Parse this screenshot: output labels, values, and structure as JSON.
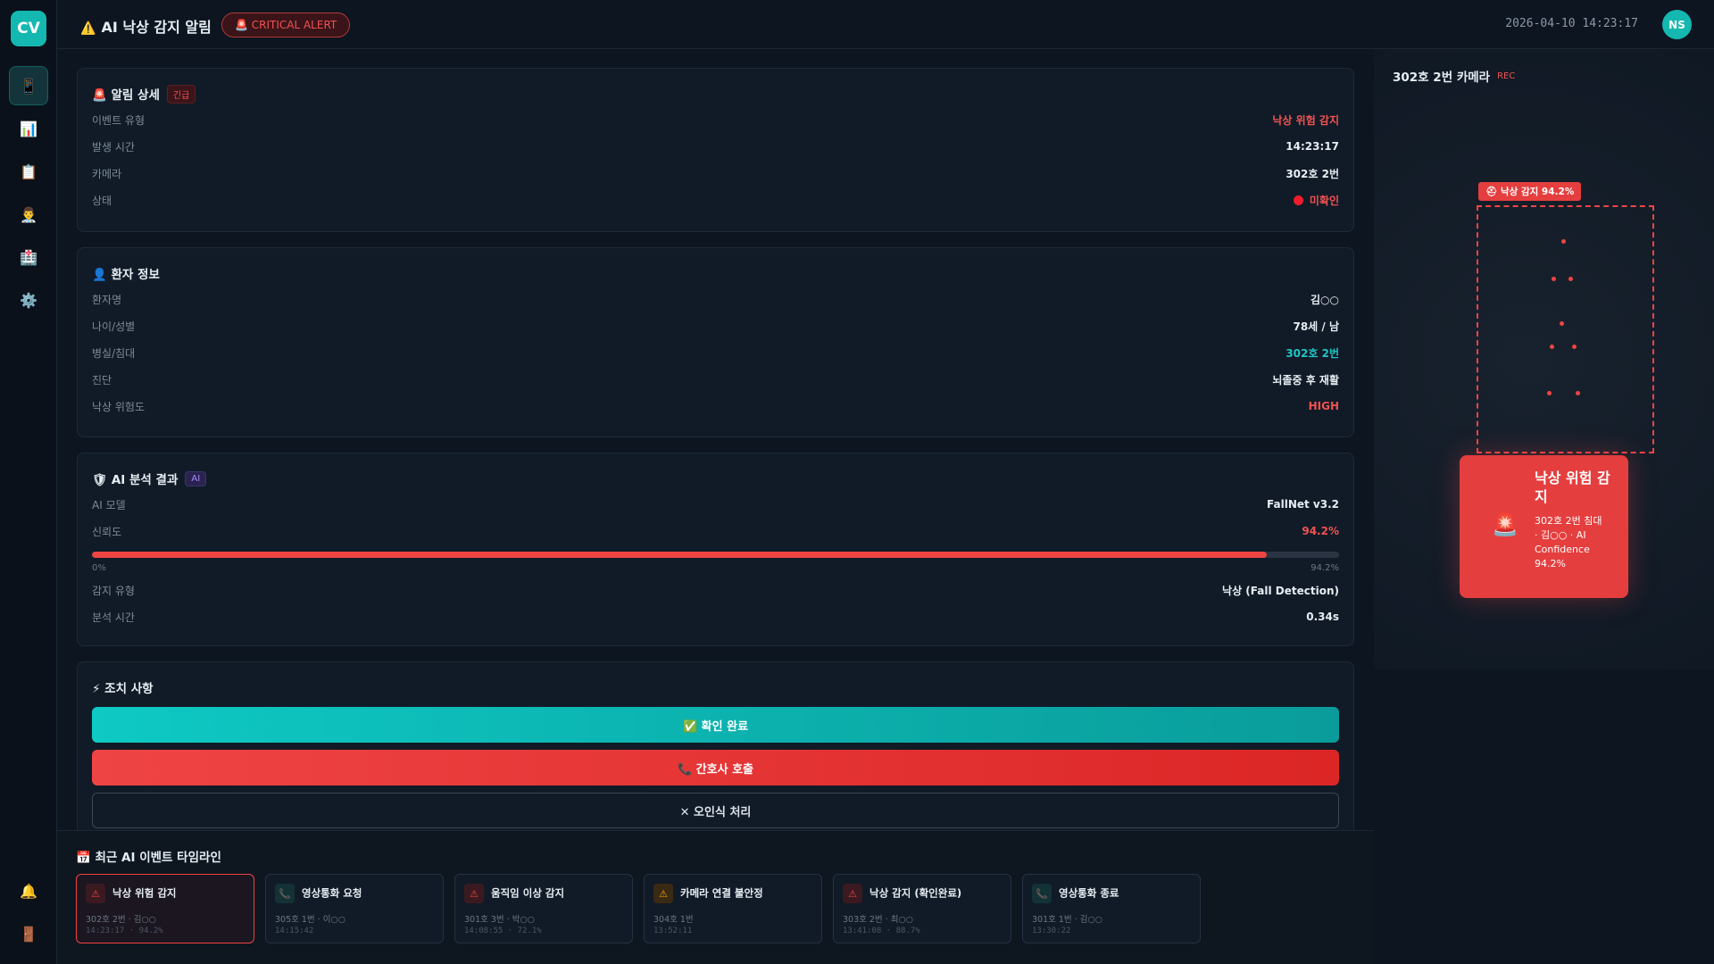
{
  "header": {
    "logo": "CV",
    "icon": "⚠️",
    "title": "AI 낙상 감지 알림",
    "badge": "🚨 CRITICAL ALERT",
    "datetime": "2026-04-10 14:23:17",
    "avatar": "NS"
  },
  "sidebar": {
    "icons": [
      "📱",
      "📊",
      "📋",
      "👨‍⚕️",
      "🏥",
      "⚙️"
    ],
    "bottom_icons": [
      "🔔",
      "🚪"
    ]
  },
  "alert": {
    "title": "🚨 알림 상세",
    "tag": "긴급",
    "rows": [
      [
        "이벤트 유형",
        "낙상 위험 감지"
      ],
      [
        "발생 시간",
        "14:23:17"
      ],
      [
        "카메라",
        "302호 2번"
      ],
      [
        "상태",
        "미확인"
      ]
    ]
  },
  "patient": {
    "title": "👤 환자 정보",
    "rows": [
      [
        "환자명",
        "김○○"
      ],
      [
        "나이/성별",
        "78세 / 남"
      ],
      [
        "병실/침대",
        "302호 2번"
      ],
      [
        "진단",
        "뇌졸중 후 재활"
      ],
      [
        "낙상 위험도",
        "HIGH"
      ]
    ]
  },
  "ai": {
    "title": "🛡 AI 분석 결과",
    "tag": "AI",
    "model": [
      "AI 모델",
      "FallNet v3.2"
    ],
    "confidence_label": "신뢰도",
    "confidence": {
      "value": 94.2,
      "label": "94.2%"
    },
    "bar_min": "0%",
    "bar_max": "94.2%",
    "rows": [
      [
        "감지 유형",
        "낙상 (Fall Detection)"
      ],
      [
        "분석 시간",
        "0.34s"
      ]
    ]
  },
  "actions": {
    "title": "⚡ 조치 사항",
    "buttons": [
      "✅ 확인 완료",
      "📞 간호사 호출",
      "✕ 오인식 처리"
    ]
  },
  "camera": {
    "title": "302호 2번 카메라",
    "rec": "REC",
    "detection_label": "⛑ 낙상 감지 94.2%",
    "alert_icon": "🚨",
    "alert_title": "낙상 위험 감지",
    "alert_text": "302호 2번 침대 · 김○○ · AI Confidence 94.2%"
  },
  "timeline": {
    "title": "📅 최근 AI 이벤트 타임라인",
    "items": [
      {
        "icon": "⚠",
        "title": "낙상 위험 감지",
        "sub": "302호 2번 · 김○○",
        "meta": "14:23:17 · 94.2%"
      },
      {
        "icon": "📞",
        "title": "영상통화 요청",
        "sub": "305호 1번 · 이○○",
        "meta": "14:15:42"
      },
      {
        "icon": "⚠",
        "title": "움직임 이상 감지",
        "sub": "301호 3번 · 박○○",
        "meta": "14:08:55 · 72.1%"
      },
      {
        "icon": "⚠",
        "title": "카메라 연결 불안정",
        "sub": "304호 1번",
        "meta": "13:52:11"
      },
      {
        "icon": "⚠",
        "title": "낙상 감지 (확인완료)",
        "sub": "303호 2번 · 최○○",
        "meta": "13:41:08 · 88.7%"
      },
      {
        "icon": "📞",
        "title": "영상통화 종료",
        "sub": "301호 1번 · 김○○",
        "meta": "13:30:22"
      }
    ]
  }
}
